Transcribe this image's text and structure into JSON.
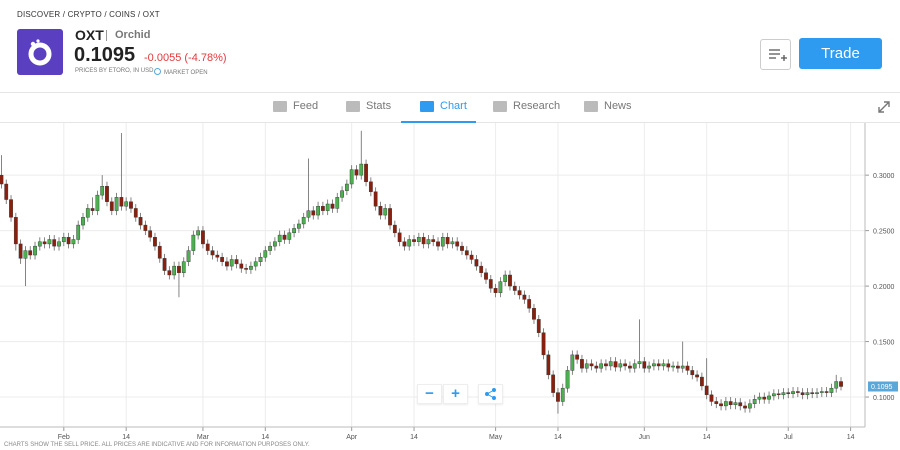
{
  "header": {
    "breadcrumb": "DISCOVER / CRYPTO / COINS / OXT",
    "symbol": "OXT",
    "name": "Orchid",
    "price": "0.1095",
    "change": "-0.0055 (-4.78%)",
    "prices_note": "PRICES BY ETORO, IN USD",
    "market_status": "MARKET OPEN",
    "trade_button": "Trade"
  },
  "tabs": [
    "Feed",
    "Stats",
    "Chart",
    "Research",
    "News"
  ],
  "controls": {
    "zoom_out": "−",
    "zoom_in": "+"
  },
  "footer": "CHARTS SHOW THE SELL PRICE. ALL PRICES ARE INDICATIVE AND FOR INFORMATION PURPOSES ONLY.",
  "chart_data": {
    "type": "candlestick",
    "up_color": "#4caf50",
    "down_color": "#8b1f0e",
    "grid": true,
    "xlim": [
      -0.3,
      180
    ],
    "ylim": [
      0.073,
      0.347
    ],
    "xticks": [
      {
        "value": 13,
        "label": "Feb"
      },
      {
        "value": 26,
        "label": "14"
      },
      {
        "value": 42,
        "label": "Mar"
      },
      {
        "value": 55,
        "label": "14"
      },
      {
        "value": 73,
        "label": "Apr"
      },
      {
        "value": 86,
        "label": "14"
      },
      {
        "value": 103,
        "label": "May"
      },
      {
        "value": 116,
        "label": "14"
      },
      {
        "value": 134,
        "label": "Jun"
      },
      {
        "value": 147,
        "label": "14"
      },
      {
        "value": 164,
        "label": "Jul"
      },
      {
        "value": 177,
        "label": "14"
      }
    ],
    "yticks": [
      {
        "value": 0.1,
        "label": "0.1000"
      },
      {
        "value": 0.15,
        "label": "0.1500"
      },
      {
        "value": 0.2,
        "label": "0.2000"
      },
      {
        "value": 0.25,
        "label": "0.2500"
      },
      {
        "value": 0.3,
        "label": "0.3000"
      }
    ],
    "open": [
      0.3,
      0.292,
      0.278,
      0.262,
      0.238,
      0.225,
      0.232,
      0.228,
      0.236,
      0.24,
      0.238,
      0.242,
      0.236,
      0.24,
      0.244,
      0.238,
      0.242,
      0.255,
      0.262,
      0.27,
      0.268,
      0.282,
      0.29,
      0.276,
      0.268,
      0.28,
      0.272,
      0.276,
      0.27,
      0.262,
      0.255,
      0.25,
      0.244,
      0.236,
      0.225,
      0.214,
      0.21,
      0.218,
      0.212,
      0.222,
      0.232,
      0.246,
      0.25,
      0.238,
      0.232,
      0.228,
      0.226,
      0.222,
      0.218,
      0.224,
      0.22,
      0.216,
      0.215,
      0.218,
      0.222,
      0.226,
      0.232,
      0.236,
      0.24,
      0.246,
      0.242,
      0.248,
      0.252,
      0.256,
      0.262,
      0.268,
      0.264,
      0.272,
      0.268,
      0.274,
      0.27,
      0.28,
      0.286,
      0.292,
      0.305,
      0.3,
      0.31,
      0.294,
      0.285,
      0.272,
      0.264,
      0.27,
      0.255,
      0.248,
      0.24,
      0.236,
      0.242,
      0.24,
      0.244,
      0.238,
      0.242,
      0.24,
      0.236,
      0.244,
      0.238,
      0.24,
      0.236,
      0.232,
      0.228,
      0.224,
      0.218,
      0.212,
      0.206,
      0.198,
      0.194,
      0.204,
      0.21,
      0.2,
      0.196,
      0.192,
      0.188,
      0.18,
      0.17,
      0.158,
      0.138,
      0.12,
      0.104,
      0.096,
      0.108,
      0.124,
      0.138,
      0.134,
      0.126,
      0.13,
      0.128,
      0.126,
      0.13,
      0.128,
      0.132,
      0.127,
      0.13,
      0.128,
      0.126,
      0.13,
      0.132,
      0.126,
      0.128,
      0.13,
      0.128,
      0.13,
      0.127,
      0.128,
      0.126,
      0.128,
      0.124,
      0.12,
      0.118,
      0.11,
      0.102,
      0.096,
      0.094,
      0.092,
      0.096,
      0.093,
      0.095,
      0.092,
      0.09,
      0.094,
      0.098,
      0.1,
      0.098,
      0.101,
      0.103,
      0.102,
      0.104,
      0.103,
      0.105,
      0.104,
      0.102,
      0.104,
      0.103,
      0.104,
      0.105,
      0.104,
      0.108,
      0.114
    ],
    "high": [
      0.318,
      0.296,
      0.282,
      0.266,
      0.242,
      0.236,
      0.236,
      0.24,
      0.244,
      0.244,
      0.246,
      0.246,
      0.244,
      0.248,
      0.248,
      0.246,
      0.259,
      0.266,
      0.274,
      0.28,
      0.286,
      0.3,
      0.294,
      0.28,
      0.284,
      0.338,
      0.28,
      0.28,
      0.274,
      0.266,
      0.259,
      0.254,
      0.248,
      0.24,
      0.229,
      0.218,
      0.222,
      0.222,
      0.226,
      0.236,
      0.25,
      0.254,
      0.254,
      0.242,
      0.236,
      0.232,
      0.23,
      0.226,
      0.228,
      0.228,
      0.224,
      0.22,
      0.222,
      0.226,
      0.23,
      0.236,
      0.24,
      0.244,
      0.25,
      0.25,
      0.252,
      0.256,
      0.26,
      0.266,
      0.315,
      0.272,
      0.276,
      0.276,
      0.278,
      0.278,
      0.284,
      0.29,
      0.296,
      0.309,
      0.309,
      0.34,
      0.314,
      0.298,
      0.289,
      0.276,
      0.274,
      0.274,
      0.259,
      0.252,
      0.244,
      0.246,
      0.246,
      0.248,
      0.248,
      0.246,
      0.246,
      0.244,
      0.248,
      0.248,
      0.244,
      0.244,
      0.24,
      0.236,
      0.232,
      0.228,
      0.222,
      0.216,
      0.21,
      0.202,
      0.208,
      0.214,
      0.214,
      0.204,
      0.2,
      0.196,
      0.192,
      0.184,
      0.174,
      0.162,
      0.142,
      0.124,
      0.108,
      0.112,
      0.128,
      0.142,
      0.142,
      0.138,
      0.134,
      0.134,
      0.132,
      0.134,
      0.134,
      0.136,
      0.136,
      0.134,
      0.134,
      0.132,
      0.134,
      0.17,
      0.136,
      0.132,
      0.134,
      0.134,
      0.134,
      0.134,
      0.132,
      0.132,
      0.15,
      0.132,
      0.128,
      0.124,
      0.122,
      0.135,
      0.106,
      0.1,
      0.098,
      0.1,
      0.1,
      0.099,
      0.099,
      0.096,
      0.098,
      0.102,
      0.104,
      0.104,
      0.105,
      0.107,
      0.107,
      0.108,
      0.108,
      0.109,
      0.109,
      0.108,
      0.108,
      0.108,
      0.108,
      0.109,
      0.109,
      0.112,
      0.12,
      0.118
    ],
    "low": [
      0.288,
      0.274,
      0.258,
      0.232,
      0.22,
      0.2,
      0.224,
      0.224,
      0.232,
      0.234,
      0.234,
      0.232,
      0.232,
      0.236,
      0.234,
      0.234,
      0.238,
      0.251,
      0.258,
      0.264,
      0.264,
      0.278,
      0.272,
      0.264,
      0.264,
      0.268,
      0.268,
      0.266,
      0.258,
      0.251,
      0.246,
      0.24,
      0.232,
      0.221,
      0.21,
      0.206,
      0.206,
      0.19,
      0.208,
      0.218,
      0.228,
      0.242,
      0.234,
      0.228,
      0.224,
      0.222,
      0.218,
      0.214,
      0.214,
      0.216,
      0.212,
      0.211,
      0.211,
      0.214,
      0.218,
      0.222,
      0.228,
      0.232,
      0.236,
      0.238,
      0.238,
      0.244,
      0.248,
      0.252,
      0.258,
      0.26,
      0.26,
      0.264,
      0.264,
      0.266,
      0.266,
      0.276,
      0.282,
      0.288,
      0.296,
      0.296,
      0.29,
      0.281,
      0.268,
      0.26,
      0.26,
      0.251,
      0.244,
      0.236,
      0.232,
      0.232,
      0.236,
      0.236,
      0.234,
      0.234,
      0.236,
      0.232,
      0.232,
      0.234,
      0.234,
      0.232,
      0.228,
      0.224,
      0.22,
      0.214,
      0.208,
      0.202,
      0.194,
      0.19,
      0.19,
      0.2,
      0.196,
      0.192,
      0.188,
      0.184,
      0.176,
      0.166,
      0.154,
      0.134,
      0.116,
      0.1,
      0.085,
      0.092,
      0.104,
      0.12,
      0.13,
      0.122,
      0.122,
      0.124,
      0.122,
      0.122,
      0.124,
      0.124,
      0.123,
      0.123,
      0.124,
      0.122,
      0.122,
      0.126,
      0.122,
      0.122,
      0.124,
      0.124,
      0.124,
      0.123,
      0.123,
      0.122,
      0.122,
      0.12,
      0.116,
      0.114,
      0.106,
      0.098,
      0.092,
      0.09,
      0.088,
      0.088,
      0.089,
      0.089,
      0.088,
      0.086,
      0.086,
      0.09,
      0.094,
      0.094,
      0.094,
      0.097,
      0.098,
      0.098,
      0.099,
      0.099,
      0.1,
      0.098,
      0.098,
      0.099,
      0.099,
      0.1,
      0.1,
      0.1,
      0.104,
      0.106
    ],
    "close": [
      0.292,
      0.278,
      0.262,
      0.238,
      0.225,
      0.232,
      0.228,
      0.236,
      0.24,
      0.238,
      0.242,
      0.236,
      0.24,
      0.244,
      0.238,
      0.242,
      0.255,
      0.262,
      0.27,
      0.268,
      0.282,
      0.29,
      0.276,
      0.268,
      0.28,
      0.272,
      0.276,
      0.27,
      0.262,
      0.255,
      0.25,
      0.244,
      0.236,
      0.225,
      0.214,
      0.21,
      0.218,
      0.212,
      0.222,
      0.232,
      0.246,
      0.25,
      0.238,
      0.232,
      0.228,
      0.226,
      0.222,
      0.218,
      0.224,
      0.22,
      0.216,
      0.215,
      0.218,
      0.222,
      0.226,
      0.232,
      0.236,
      0.24,
      0.246,
      0.242,
      0.248,
      0.252,
      0.256,
      0.262,
      0.268,
      0.264,
      0.272,
      0.268,
      0.274,
      0.27,
      0.28,
      0.286,
      0.292,
      0.305,
      0.3,
      0.31,
      0.294,
      0.285,
      0.272,
      0.264,
      0.27,
      0.255,
      0.248,
      0.24,
      0.236,
      0.242,
      0.24,
      0.244,
      0.238,
      0.242,
      0.24,
      0.236,
      0.244,
      0.238,
      0.24,
      0.236,
      0.232,
      0.228,
      0.224,
      0.218,
      0.212,
      0.206,
      0.198,
      0.194,
      0.204,
      0.21,
      0.2,
      0.196,
      0.192,
      0.188,
      0.18,
      0.17,
      0.158,
      0.138,
      0.12,
      0.104,
      0.096,
      0.108,
      0.124,
      0.138,
      0.134,
      0.126,
      0.13,
      0.128,
      0.126,
      0.13,
      0.128,
      0.132,
      0.127,
      0.13,
      0.128,
      0.126,
      0.13,
      0.132,
      0.126,
      0.128,
      0.13,
      0.128,
      0.13,
      0.127,
      0.128,
      0.126,
      0.128,
      0.124,
      0.12,
      0.118,
      0.11,
      0.102,
      0.096,
      0.094,
      0.092,
      0.096,
      0.093,
      0.095,
      0.092,
      0.09,
      0.094,
      0.098,
      0.1,
      0.098,
      0.101,
      0.103,
      0.102,
      0.104,
      0.103,
      0.105,
      0.104,
      0.102,
      0.104,
      0.103,
      0.104,
      0.105,
      0.104,
      0.108,
      0.114,
      0.1095
    ]
  }
}
